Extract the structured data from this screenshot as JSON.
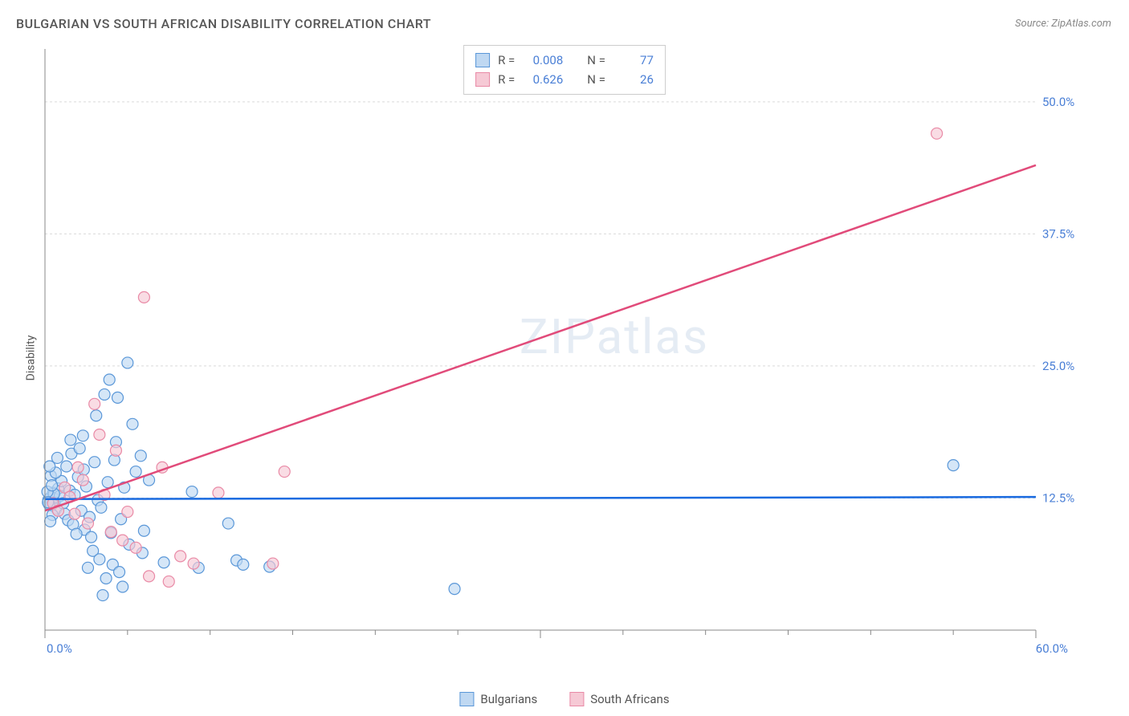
{
  "title": "BULGARIAN VS SOUTH AFRICAN DISABILITY CORRELATION CHART",
  "source": "Source: ZipAtlas.com",
  "ylabel": "Disability",
  "watermark": "ZIPatlas",
  "chart": {
    "type": "scatter",
    "xlim": [
      0,
      60
    ],
    "ylim": [
      0,
      55
    ],
    "x_axis_label_start": "0.0%",
    "x_axis_label_end": "60.0%",
    "y_ticks": [
      {
        "v": 12.5,
        "label": "12.5%"
      },
      {
        "v": 25.0,
        "label": "25.0%"
      },
      {
        "v": 37.5,
        "label": "37.5%"
      },
      {
        "v": 50.0,
        "label": "50.0%"
      }
    ],
    "x_minor_ticks": [
      0,
      5,
      10,
      15,
      20,
      25,
      30,
      35,
      40,
      45,
      50,
      55,
      60
    ],
    "x_major_ticks": [
      0,
      30,
      60
    ],
    "grid_color": "#d9d9d9",
    "axis_color": "#888888",
    "tick_label_color": "#4a7fd6",
    "background_color": "#ffffff",
    "marker_radius": 7,
    "marker_stroke_width": 1.2,
    "trendline_width": 2.5
  },
  "series": [
    {
      "name": "Bulgarians",
      "fill": "#bfd8f2",
      "stroke": "#5a97d8",
      "fill_opacity": 0.65,
      "stat_R": "0.008",
      "stat_N": "77",
      "trendline": {
        "x1": 0,
        "y1": 12.4,
        "x2": 60,
        "y2": 12.6,
        "color": "#1a6be0"
      },
      "points": [
        [
          0.2,
          12.3
        ],
        [
          0.3,
          12.5
        ],
        [
          0.5,
          13.0
        ],
        [
          0.4,
          11.8
        ],
        [
          0.6,
          12.1
        ],
        [
          0.8,
          13.4
        ],
        [
          0.7,
          11.5
        ],
        [
          0.9,
          12.7
        ],
        [
          1.0,
          14.1
        ],
        [
          1.1,
          12.0
        ],
        [
          1.3,
          15.5
        ],
        [
          1.2,
          11.0
        ],
        [
          1.5,
          13.2
        ],
        [
          1.4,
          10.4
        ],
        [
          1.6,
          16.7
        ],
        [
          1.8,
          12.8
        ],
        [
          1.7,
          10.0
        ],
        [
          2.0,
          14.5
        ],
        [
          2.2,
          11.3
        ],
        [
          2.1,
          17.2
        ],
        [
          2.4,
          9.5
        ],
        [
          2.5,
          13.6
        ],
        [
          2.3,
          18.4
        ],
        [
          2.7,
          10.7
        ],
        [
          3.0,
          15.9
        ],
        [
          2.8,
          8.8
        ],
        [
          3.2,
          12.3
        ],
        [
          3.4,
          11.6
        ],
        [
          3.1,
          20.3
        ],
        [
          3.6,
          22.3
        ],
        [
          3.8,
          14.0
        ],
        [
          4.0,
          9.2
        ],
        [
          3.9,
          23.7
        ],
        [
          4.4,
          22.0
        ],
        [
          4.2,
          16.1
        ],
        [
          4.6,
          10.5
        ],
        [
          5.0,
          25.3
        ],
        [
          4.8,
          13.5
        ],
        [
          5.3,
          19.5
        ],
        [
          5.1,
          8.1
        ],
        [
          5.5,
          15.0
        ],
        [
          2.9,
          7.5
        ],
        [
          3.3,
          6.7
        ],
        [
          4.1,
          6.2
        ],
        [
          5.9,
          7.3
        ],
        [
          6.3,
          14.2
        ],
        [
          7.2,
          6.4
        ],
        [
          8.9,
          13.1
        ],
        [
          6.0,
          9.4
        ],
        [
          2.6,
          5.9
        ],
        [
          4.5,
          5.5
        ],
        [
          1.9,
          9.1
        ],
        [
          0.35,
          14.6
        ],
        [
          0.45,
          10.9
        ],
        [
          0.55,
          12.9
        ],
        [
          0.25,
          11.9
        ],
        [
          0.15,
          13.1
        ],
        [
          0.65,
          14.9
        ],
        [
          0.28,
          15.5
        ],
        [
          0.75,
          16.3
        ],
        [
          0.32,
          10.3
        ],
        [
          0.42,
          13.7
        ],
        [
          0.18,
          12.1
        ],
        [
          5.8,
          16.5
        ],
        [
          3.5,
          3.3
        ],
        [
          3.7,
          4.9
        ],
        [
          4.7,
          4.1
        ],
        [
          11.6,
          6.6
        ],
        [
          12.0,
          6.2
        ],
        [
          11.1,
          10.1
        ],
        [
          9.3,
          5.9
        ],
        [
          13.6,
          6.0
        ],
        [
          24.8,
          3.9
        ],
        [
          4.3,
          17.8
        ],
        [
          55.0,
          15.6
        ],
        [
          2.35,
          15.2
        ],
        [
          1.55,
          18.0
        ]
      ]
    },
    {
      "name": "South Africans",
      "fill": "#f6c9d5",
      "stroke": "#e98aa6",
      "fill_opacity": 0.65,
      "stat_R": "0.626",
      "stat_N": "26",
      "trendline": {
        "x1": 0,
        "y1": 11.3,
        "x2": 60,
        "y2": 44.0,
        "color": "#e14b7a"
      },
      "points": [
        [
          0.5,
          12.0
        ],
        [
          0.8,
          11.3
        ],
        [
          1.2,
          13.5
        ],
        [
          1.5,
          12.6
        ],
        [
          1.8,
          11.0
        ],
        [
          2.0,
          15.4
        ],
        [
          2.3,
          14.2
        ],
        [
          2.6,
          10.1
        ],
        [
          3.0,
          21.4
        ],
        [
          3.3,
          18.5
        ],
        [
          3.6,
          12.8
        ],
        [
          4.0,
          9.3
        ],
        [
          4.3,
          17.0
        ],
        [
          4.7,
          8.5
        ],
        [
          5.0,
          11.2
        ],
        [
          5.5,
          7.8
        ],
        [
          8.2,
          7.0
        ],
        [
          6.0,
          31.5
        ],
        [
          6.3,
          5.1
        ],
        [
          7.5,
          4.6
        ],
        [
          7.1,
          15.4
        ],
        [
          9.0,
          6.3
        ],
        [
          10.5,
          13.0
        ],
        [
          13.8,
          6.3
        ],
        [
          14.5,
          15.0
        ],
        [
          54.0,
          47.0
        ]
      ]
    }
  ],
  "legend_top": {
    "R_label": "R =",
    "N_label": "N ="
  },
  "legend_bottom": [
    {
      "label": "Bulgarians",
      "fill": "#bfd8f2",
      "stroke": "#5a97d8"
    },
    {
      "label": "South Africans",
      "fill": "#f6c9d5",
      "stroke": "#e98aa6"
    }
  ]
}
